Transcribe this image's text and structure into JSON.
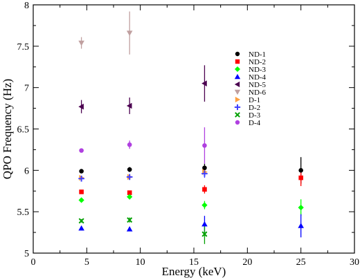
{
  "chart_data": {
    "type": "scatter",
    "title": "",
    "xlabel": "Energy (keV)",
    "ylabel": "QPO Frequency (Hz)",
    "xlim": [
      0,
      30
    ],
    "ylim": [
      5,
      8
    ],
    "xticks": [
      "0",
      "5",
      "10",
      "15",
      "20",
      "25",
      "30"
    ],
    "yticks": [
      "5",
      "5.5",
      "6",
      "6.5",
      "7",
      "7.5",
      "8"
    ],
    "grid": false,
    "legend_position": "top-right",
    "series": [
      {
        "name": "ND-1",
        "color": "#000000",
        "marker": "circle",
        "x": [
          4.5,
          9.0,
          16.0,
          25.0
        ],
        "y": [
          5.99,
          6.01,
          6.03,
          6.0
        ],
        "err": [
          0.02,
          0.03,
          0.05,
          0.16
        ]
      },
      {
        "name": "ND-2",
        "color": "#ff0000",
        "marker": "square",
        "x": [
          4.5,
          9.0,
          16.0,
          25.0
        ],
        "y": [
          5.74,
          5.73,
          5.77,
          5.91
        ],
        "err": [
          0.02,
          0.02,
          0.05,
          0.1
        ]
      },
      {
        "name": "ND-3",
        "color": "#00ff00",
        "marker": "diamond",
        "x": [
          4.5,
          9.0,
          16.0,
          25.0
        ],
        "y": [
          5.64,
          5.68,
          5.58,
          5.55
        ],
        "err": [
          0.02,
          0.03,
          0.05,
          0.1
        ]
      },
      {
        "name": "ND-4",
        "color": "#0000ff",
        "marker": "triangle-up",
        "x": [
          4.5,
          9.0,
          16.0,
          25.0
        ],
        "y": [
          5.3,
          5.29,
          5.35,
          5.33
        ],
        "err": [
          0.02,
          0.02,
          0.1,
          0.14
        ]
      },
      {
        "name": "ND-5",
        "color": "#4b0050",
        "marker": "triangle-left",
        "x": [
          4.5,
          9.0,
          16.0
        ],
        "y": [
          6.77,
          6.78,
          7.05
        ],
        "err": [
          0.08,
          0.1,
          0.22
        ]
      },
      {
        "name": "ND-6",
        "color": "#c0a0a0",
        "marker": "triangle-down",
        "x": [
          4.5,
          9.0
        ],
        "y": [
          7.54,
          7.66
        ],
        "err": [
          0.07,
          0.26
        ]
      },
      {
        "name": "D-1",
        "color": "#ffa040",
        "marker": "triangle-right",
        "x": [
          4.5,
          9.0,
          16.0
        ],
        "y": [
          5.91,
          5.92,
          5.98
        ],
        "err": [
          0.02,
          0.02,
          0.04
        ]
      },
      {
        "name": "D-2",
        "color": "#4040ff",
        "marker": "plus",
        "x": [
          4.5,
          9.0,
          16.0
        ],
        "y": [
          5.9,
          5.92,
          5.96
        ],
        "err": [
          0.02,
          0.02,
          0.05
        ]
      },
      {
        "name": "D-3",
        "color": "#00a000",
        "marker": "x",
        "x": [
          4.5,
          9.0,
          16.0
        ],
        "y": [
          5.39,
          5.4,
          5.23
        ],
        "err": [
          0.02,
          0.03,
          0.12
        ]
      },
      {
        "name": "D-4",
        "color": "#b040e0",
        "marker": "circle",
        "x": [
          4.5,
          9.0,
          16.0
        ],
        "y": [
          6.24,
          6.31,
          6.3
        ],
        "err": [
          0.02,
          0.05,
          0.22
        ]
      }
    ]
  }
}
